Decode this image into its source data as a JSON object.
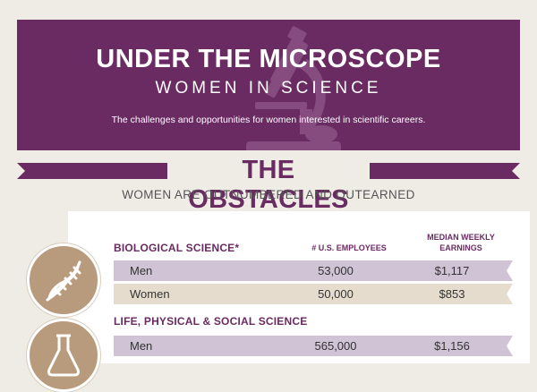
{
  "header": {
    "title": "UNDER THE MICROSCOPE",
    "subtitle": "WOMEN IN SCIENCE",
    "tagline": "The challenges and opportunities for women interested in scientific careers."
  },
  "section": {
    "title": "THE OBSTACLES",
    "subtitle": "WOMEN ARE OUTNUMBERED AND OUTEARNED"
  },
  "columns": {
    "employees": "# U.S. EMPLOYEES",
    "earnings_line1": "MEDIAN WEEKLY",
    "earnings_line2": "EARNINGS"
  },
  "groups": [
    {
      "name": "BIOLOGICAL SCIENCE*",
      "icon": "dna-icon",
      "rows": [
        {
          "label": "Men",
          "employees": "53,000",
          "earnings": "$1,117"
        },
        {
          "label": "Women",
          "employees": "50,000",
          "earnings": "$853"
        }
      ]
    },
    {
      "name": "LIFE, PHYSICAL & SOCIAL SCIENCE",
      "icon": "flask-icon",
      "rows": [
        {
          "label": "Men",
          "employees": "565,000",
          "earnings": "$1,156"
        }
      ]
    }
  ],
  "colors": {
    "purple": "#6a2a62",
    "row_purple": "#cfc3d5",
    "row_tan": "#e6dccd",
    "icon_tan": "#b89a7c",
    "background": "#efece6"
  }
}
